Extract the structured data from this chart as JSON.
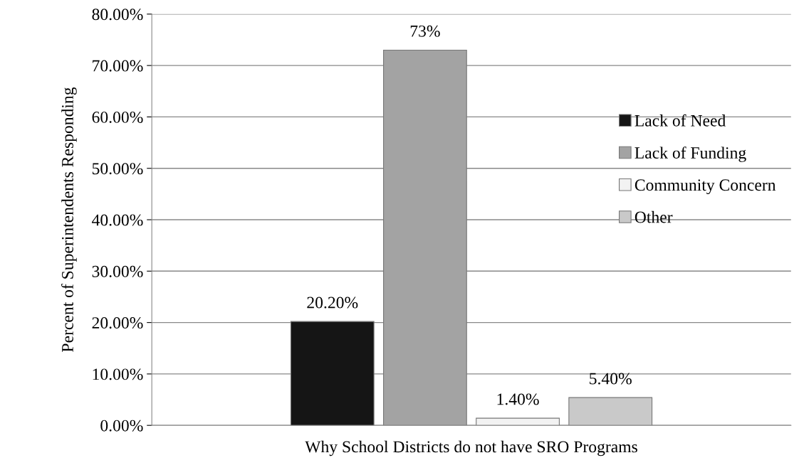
{
  "chart_data": {
    "type": "bar",
    "xlabel": "Why School Districts do not have SRO Programs",
    "ylabel": "Percent of Superintendents Responding",
    "categories": [
      null
    ],
    "series": [
      {
        "name": "Lack of Need",
        "color": "#151515",
        "values": [
          20.2
        ],
        "value_labels": [
          "20.20%"
        ]
      },
      {
        "name": "Lack of Funding",
        "color": "#a3a3a3",
        "values": [
          73
        ],
        "value_labels": [
          "73%"
        ]
      },
      {
        "name": "Community Concern",
        "color": "#f2f2f2",
        "values": [
          1.4
        ],
        "value_labels": [
          "1.40%"
        ]
      },
      {
        "name": "Other",
        "color": "#c9c9c9",
        "values": [
          5.4
        ],
        "value_labels": [
          "5.40%"
        ]
      }
    ],
    "ylim": [
      0,
      80
    ],
    "yticks": [
      {
        "value": 0,
        "label": "0.00%"
      },
      {
        "value": 10,
        "label": "10.00%"
      },
      {
        "value": 20,
        "label": "20.00%"
      },
      {
        "value": 30,
        "label": "30.00%"
      },
      {
        "value": 40,
        "label": "40.00%"
      },
      {
        "value": 50,
        "label": "50.00%"
      },
      {
        "value": 60,
        "label": "60.00%"
      },
      {
        "value": 70,
        "label": "70.00%"
      },
      {
        "value": 80,
        "label": "80.00%"
      }
    ],
    "grid": "y",
    "legend": "right"
  }
}
